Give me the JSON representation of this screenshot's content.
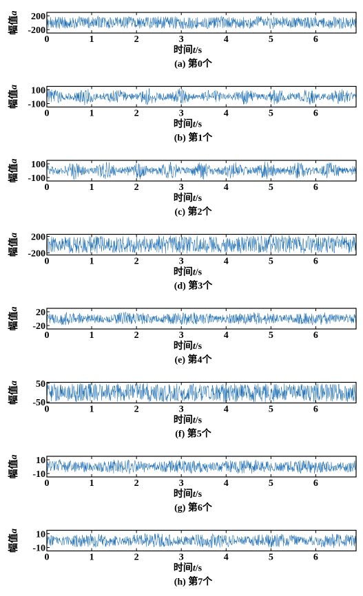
{
  "chart_data": [
    {
      "type": "line",
      "panel_label": "(a)",
      "caption": "第0个",
      "ylabel": "幅值",
      "ylabel_var": "a",
      "xlabel": "时间",
      "xlabel_var": "t",
      "xlabel_unit": "/s",
      "xlim": [
        0,
        6.9
      ],
      "ylim": [
        -300,
        300
      ],
      "xticks": [
        0,
        1,
        2,
        3,
        4,
        5,
        6
      ],
      "yticks": [
        200,
        -200
      ],
      "ytick_labels": [
        "200",
        "-200"
      ],
      "series": [
        {
          "color": "#1f6fb5",
          "amplitude": 200,
          "envelope": "flat"
        }
      ]
    },
    {
      "type": "line",
      "panel_label": "(b)",
      "caption": "第1个",
      "ylabel": "幅值",
      "ylabel_var": "a",
      "xlabel": "时间",
      "xlabel_var": "t",
      "xlabel_unit": "/s",
      "xlim": [
        0,
        6.9
      ],
      "ylim": [
        -150,
        150
      ],
      "xticks": [
        0,
        1,
        2,
        3,
        4,
        5,
        6
      ],
      "yticks": [
        100,
        -100
      ],
      "ytick_labels": [
        "100",
        "-100"
      ],
      "series": [
        {
          "color": "#1f6fb5",
          "amplitude": 110,
          "envelope": "bursty"
        }
      ]
    },
    {
      "type": "line",
      "panel_label": "(c)",
      "caption": "第2个",
      "ylabel": "幅值",
      "ylabel_var": "a",
      "xlabel": "时间",
      "xlabel_var": "t",
      "xlabel_unit": "/s",
      "xlim": [
        0,
        6.9
      ],
      "ylim": [
        -150,
        150
      ],
      "xticks": [
        0,
        1,
        2,
        3,
        4,
        5,
        6
      ],
      "yticks": [
        100,
        -100
      ],
      "ytick_labels": [
        "100",
        "-100"
      ],
      "series": [
        {
          "color": "#1f6fb5",
          "amplitude": 120,
          "envelope": "bursty"
        }
      ]
    },
    {
      "type": "line",
      "panel_label": "(d)",
      "caption": "第3个",
      "ylabel": "幅值",
      "ylabel_var": "a",
      "xlabel": "时间",
      "xlabel_var": "t",
      "xlabel_unit": "/s",
      "xlim": [
        0,
        6.9
      ],
      "ylim": [
        -250,
        250
      ],
      "xticks": [
        0,
        1,
        2,
        3,
        4,
        5,
        6
      ],
      "yticks": [
        200,
        -200
      ],
      "ytick_labels": [
        "200",
        "-200"
      ],
      "series": [
        {
          "color": "#1f6fb5",
          "amplitude": 230,
          "envelope": "dense"
        }
      ]
    },
    {
      "type": "line",
      "panel_label": "(e)",
      "caption": "第4个",
      "ylabel": "幅值",
      "ylabel_var": "a",
      "xlabel": "时间",
      "xlabel_var": "t",
      "xlabel_unit": "/s",
      "xlim": [
        0,
        6.9
      ],
      "ylim": [
        -30,
        30
      ],
      "xticks": [
        0,
        1,
        2,
        3,
        4,
        5,
        6
      ],
      "yticks": [
        20,
        -20
      ],
      "ytick_labels": [
        "20",
        "-20"
      ],
      "series": [
        {
          "color": "#1f6fb5",
          "amplitude": 20,
          "envelope": "modulated"
        }
      ]
    },
    {
      "type": "line",
      "panel_label": "(f)",
      "caption": "第5个",
      "ylabel": "幅值",
      "ylabel_var": "a",
      "xlabel": "时间",
      "xlabel_var": "t",
      "xlabel_unit": "/s",
      "xlim": [
        0,
        6.9
      ],
      "ylim": [
        -55,
        55
      ],
      "xticks": [
        0,
        1,
        2,
        3,
        4,
        5,
        6
      ],
      "yticks": [
        50,
        -50
      ],
      "ytick_labels": [
        "50",
        "-50"
      ],
      "series": [
        {
          "color": "#1f6fb5",
          "amplitude": 52,
          "envelope": "dense"
        }
      ]
    },
    {
      "type": "line",
      "panel_label": "(g)",
      "caption": "第6个",
      "ylabel": "幅值",
      "ylabel_var": "a",
      "xlabel": "时间",
      "xlabel_var": "t",
      "xlabel_unit": "/s",
      "xlim": [
        0,
        6.9
      ],
      "ylim": [
        -15,
        15
      ],
      "xticks": [
        0,
        1,
        2,
        3,
        4,
        5,
        6
      ],
      "yticks": [
        10,
        -10
      ],
      "ytick_labels": [
        "10",
        "-10"
      ],
      "series": [
        {
          "color": "#1f6fb5",
          "amplitude": 11,
          "envelope": "modulated"
        }
      ]
    },
    {
      "type": "line",
      "panel_label": "(h)",
      "caption": "第7个",
      "ylabel": "幅值",
      "ylabel_var": "a",
      "xlabel": "时间",
      "xlabel_var": "t",
      "xlabel_unit": "/s",
      "xlim": [
        0,
        6.9
      ],
      "ylim": [
        -15,
        15
      ],
      "xticks": [
        0,
        1,
        2,
        3,
        4,
        5,
        6
      ],
      "yticks": [
        10,
        -10
      ],
      "ytick_labels": [
        "10",
        "-10"
      ],
      "series": [
        {
          "color": "#1f6fb5",
          "amplitude": 11,
          "envelope": "modulated"
        }
      ]
    }
  ]
}
